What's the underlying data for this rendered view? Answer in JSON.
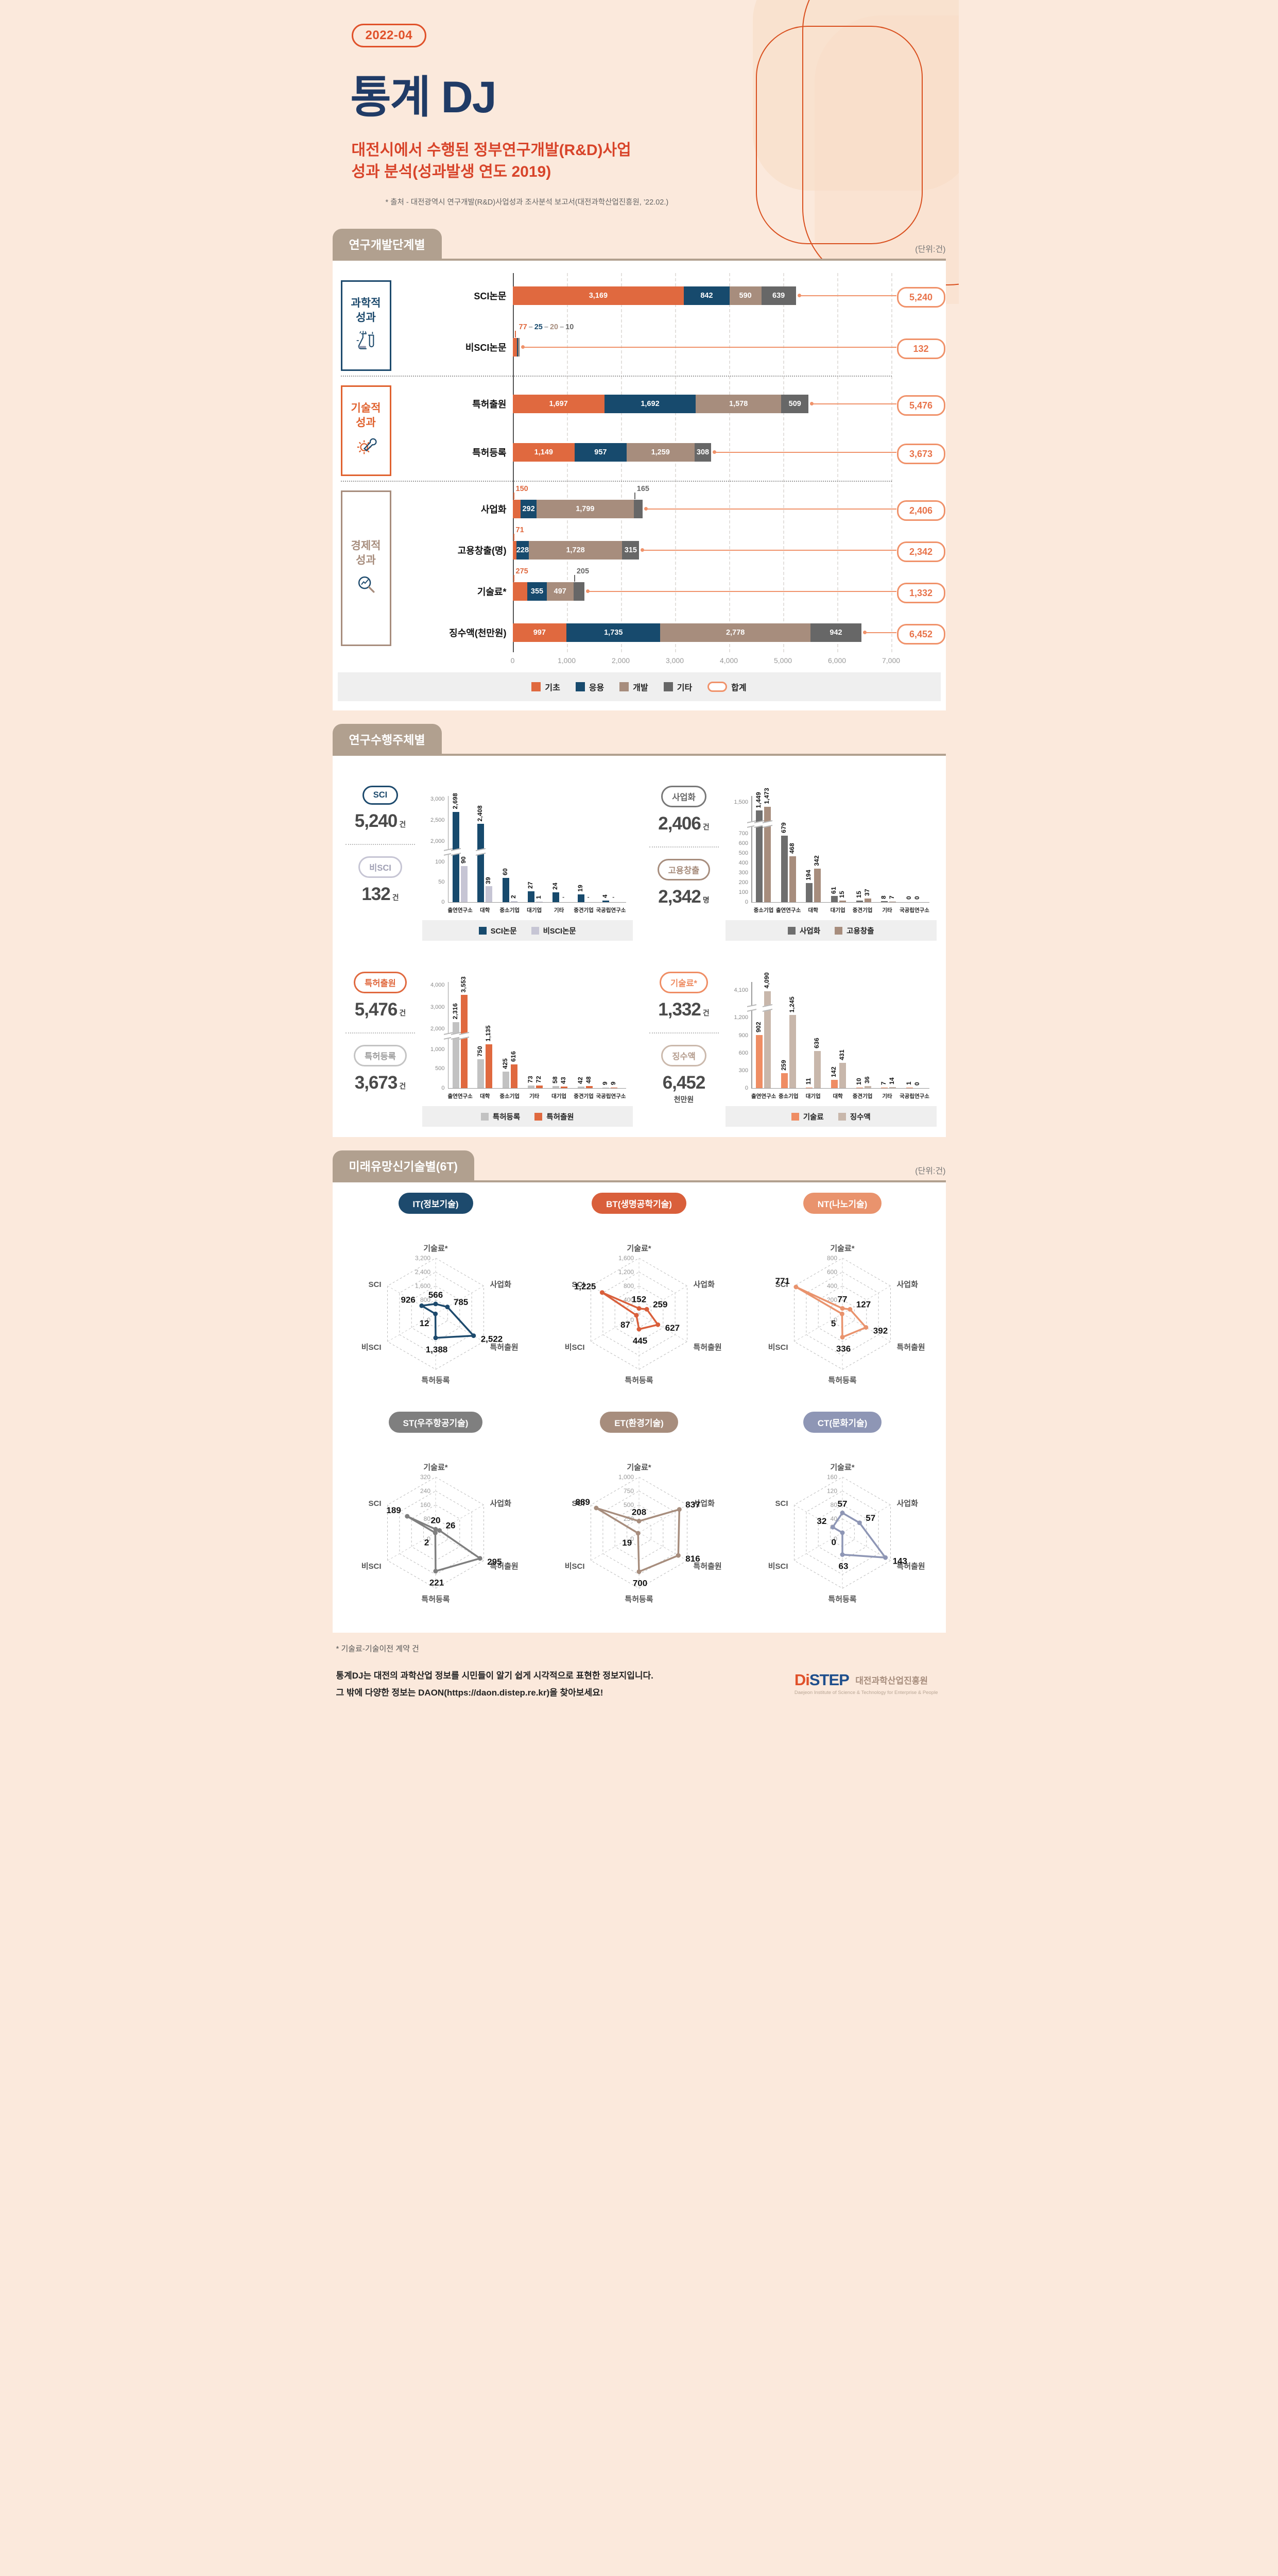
{
  "header": {
    "badge": "2022-04",
    "title": "통계 DJ",
    "subtitle_line1": "대전시에서 수행된 정부연구개발(R&D)사업",
    "subtitle_line2": "성과 분석(성과발생 연도 2019)",
    "source": "* 출처 - 대전광역시 연구개발(R&D)사업성과 조사분석 보고서(대전과학산업진흥원, ’22.02.)"
  },
  "section1": {
    "title": "연구개발단계별",
    "unit": "(단위:건)"
  },
  "section2": {
    "title": "연구수행주체별"
  },
  "section3": {
    "title": "미래유망신기술별(6T)",
    "unit": "(단위:건)"
  },
  "footer": {
    "note": "* 기술료-기술이전 계약 건",
    "line1": "통계DJ는 대전의 과학산업 정보를 시민들이 알기 쉽게 시각적으로 표현한 정보지입니다.",
    "line2": "그 밖에 다양한 정보는 DAON(https://daon.distep.re.kr)을 찾아보세요!",
    "logo_di": "Di",
    "logo_step": "STEP",
    "logo_kr": "대전과학산업진흥원",
    "logo_en": "Daejeon Institute of Science & Technology for Enterprise & People"
  },
  "chart_data": [
    {
      "id": "rnd-stage",
      "type": "bar",
      "subtype": "horizontal-stacked",
      "title": "연구개발단계별",
      "unit": "건",
      "xlim": [
        0,
        7000
      ],
      "x_ticks": [
        0,
        1000,
        2000,
        3000,
        4000,
        5000,
        6000,
        7000
      ],
      "series": [
        {
          "name": "기초",
          "color": "#e0693f"
        },
        {
          "name": "응용",
          "color": "#174a6d"
        },
        {
          "name": "개발",
          "color": "#a78d7d"
        },
        {
          "name": "기타",
          "color": "#676767"
        }
      ],
      "total_legend": {
        "label": "합계",
        "color": "#f0926a"
      },
      "groups": [
        {
          "name": "과학적 성과",
          "color": "#1d4a6d",
          "icon": "flask-icon",
          "rows": [
            {
              "label": "SCI논문",
              "values": [
                3169,
                842,
                590,
                639
              ],
              "total": 5240,
              "inside": [
                true,
                true,
                true,
                true
              ],
              "callouts": []
            },
            {
              "label": "비SCI논문",
              "values": [
                77,
                25,
                20,
                10
              ],
              "total": 132,
              "inside": [
                false,
                false,
                false,
                false
              ],
              "combo_callout": true,
              "callouts": []
            }
          ]
        },
        {
          "name": "기술적 성과",
          "color": "#e0622f",
          "icon": "gear-wrench-icon",
          "rows": [
            {
              "label": "특허출원",
              "values": [
                1697,
                1692,
                1578,
                509
              ],
              "total": 5476,
              "inside": [
                true,
                true,
                true,
                true
              ],
              "callouts": []
            },
            {
              "label": "특허등록",
              "values": [
                1149,
                957,
                1259,
                308
              ],
              "total": 3673,
              "inside": [
                true,
                true,
                true,
                true
              ],
              "callouts": []
            }
          ]
        },
        {
          "name": "경제적 성과",
          "color": "#a78d7d",
          "icon": "magnifier-chart-icon",
          "rows": [
            {
              "label": "사업화",
              "values": [
                150,
                292,
                1799,
                165
              ],
              "total": 2406,
              "inside": [
                false,
                true,
                true,
                false
              ],
              "callouts": [
                {
                  "seg": 0
                },
                {
                  "seg": 3
                }
              ]
            },
            {
              "label": "고용창출(명)",
              "values": [
                71,
                228,
                1728,
                315
              ],
              "total": 2342,
              "inside": [
                false,
                true,
                true,
                true
              ],
              "callouts": [
                {
                  "seg": 0
                }
              ]
            },
            {
              "label": "기술료*",
              "values": [
                275,
                355,
                497,
                205
              ],
              "total": 1332,
              "inside": [
                false,
                true,
                true,
                false
              ],
              "callouts": [
                {
                  "seg": 0
                },
                {
                  "seg": 3
                }
              ]
            },
            {
              "label": "징수액(천만원)",
              "values": [
                997,
                1735,
                2778,
                942
              ],
              "total": 6452,
              "inside": [
                true,
                true,
                true,
                true
              ],
              "callouts": []
            }
          ]
        }
      ]
    },
    {
      "id": "papers-by-performer",
      "type": "bar",
      "subtype": "grouped-vertical-broken-axis",
      "summaries": [
        {
          "label": "SCI",
          "value": 5240,
          "unit": "건",
          "border": "#1d4a6d",
          "text": "#1d4a6d"
        },
        {
          "label": "비SCI",
          "value": 132,
          "unit": "건",
          "border": "#c6c5d4",
          "text": "#a0a0b4"
        }
      ],
      "categories": [
        "출연연구소",
        "대학",
        "중소기업",
        "대기업",
        "기타",
        "중견기업",
        "국공립연구소"
      ],
      "series": [
        {
          "name": "SCI논문",
          "color": "#174a6d",
          "values": [
            2698,
            2408,
            60,
            27,
            24,
            19,
            4
          ]
        },
        {
          "name": "비SCI논문",
          "color": "#c6c5d4",
          "values": [
            90,
            39,
            2,
            1,
            null,
            null,
            null
          ]
        }
      ],
      "scale": {
        "low_ticks": [
          0,
          50,
          100
        ],
        "low_max": 115,
        "high_ticks": [
          2000,
          2500,
          3000
        ],
        "high_min": 1800,
        "high_max": 3000,
        "low_frac": 0.45
      }
    },
    {
      "id": "commercialization-employment-by-performer",
      "type": "bar",
      "subtype": "grouped-vertical-broken-axis",
      "summaries": [
        {
          "label": "사업화",
          "value": 2406,
          "unit": "건",
          "border": "#787878",
          "text": "#666666"
        },
        {
          "label": "고용창출",
          "value": 2342,
          "unit": "명",
          "border": "#a78d7d",
          "text": "#a78d7d"
        }
      ],
      "categories": [
        "중소기업",
        "출연연구소",
        "대학",
        "대기업",
        "중견기업",
        "기타",
        "국공립연구소"
      ],
      "series": [
        {
          "name": "사업화",
          "color": "#6e6e6e",
          "values": [
            1449,
            679,
            194,
            61,
            15,
            8,
            0
          ]
        },
        {
          "name": "고용창출",
          "color": "#a78d7d",
          "values": [
            1473,
            468,
            342,
            15,
            37,
            7,
            0
          ]
        }
      ],
      "scale": {
        "low_ticks": [
          0,
          100,
          200,
          300,
          400,
          500,
          600,
          700
        ],
        "low_max": 760,
        "high_ticks": [
          1500
        ],
        "high_min": 1380,
        "high_max": 1520,
        "low_frac": 0.72
      }
    },
    {
      "id": "patents-by-performer",
      "type": "bar",
      "subtype": "grouped-vertical-broken-axis",
      "summaries": [
        {
          "label": "특허출원",
          "value": 5476,
          "unit": "건",
          "border": "#e0693f",
          "text": "#e0693f"
        },
        {
          "label": "특허등록",
          "value": 3673,
          "unit": "건",
          "border": "#c4c4c4",
          "text": "#9b9b9b"
        }
      ],
      "categories": [
        "출연연구소",
        "대학",
        "중소기업",
        "기타",
        "대기업",
        "중견기업",
        "국공립연구소"
      ],
      "series": [
        {
          "name": "특허등록",
          "color": "#c2c2c2",
          "values": [
            2316,
            750,
            425,
            73,
            58,
            42,
            9
          ]
        },
        {
          "name": "특허출원",
          "color": "#e0693f",
          "values": [
            3553,
            1135,
            616,
            72,
            43,
            48,
            9
          ]
        }
      ],
      "scale": {
        "low_ticks": [
          0,
          500,
          1000
        ],
        "low_max": 1250,
        "high_ticks": [
          2000,
          3000,
          4000
        ],
        "high_min": 1800,
        "high_max": 4000,
        "low_frac": 0.47
      }
    },
    {
      "id": "royalty-collection-by-performer",
      "type": "bar",
      "subtype": "grouped-vertical-broken-axis",
      "summaries": [
        {
          "label": "기술료*",
          "value": 1332,
          "unit": "건",
          "border": "#ef8d64",
          "text": "#ef8d64"
        },
        {
          "label": "징수액",
          "value": 6452,
          "unit": "천만원",
          "border": "#cbb9ac",
          "text": "#b49c8d",
          "unit_block": true
        }
      ],
      "categories": [
        "출연연구소",
        "중소기업",
        "대기업",
        "대학",
        "중견기업",
        "기타",
        "국공립연구소"
      ],
      "series": [
        {
          "name": "기술료",
          "color": "#ef8d64",
          "values": [
            902,
            259,
            11,
            142,
            10,
            7,
            1
          ]
        },
        {
          "name": "징수액",
          "color": "#c8b7ab",
          "values": [
            4090,
            1245,
            636,
            431,
            36,
            14,
            0
          ]
        }
      ],
      "scale": {
        "low_ticks": [
          0,
          300,
          600,
          900,
          1200
        ],
        "low_max": 1300,
        "high_ticks": [
          4100
        ],
        "high_min": 3950,
        "high_max": 4150,
        "low_frac": 0.74
      }
    },
    {
      "id": "radar-it",
      "type": "radar",
      "title": "IT(정보기술)",
      "color": "#1d4a6d",
      "max": 3200,
      "rings": [
        0,
        800,
        1600,
        2400,
        3200
      ],
      "axes": [
        "기술료*",
        "사업화",
        "특허출원",
        "특허등록",
        "비SCI",
        "SCI"
      ],
      "values": [
        566,
        785,
        2522,
        1388,
        12,
        926
      ]
    },
    {
      "id": "radar-bt",
      "type": "radar",
      "title": "BT(생명공학기술)",
      "color": "#d95f3b",
      "max": 1600,
      "rings": [
        0,
        400,
        800,
        1200,
        1600
      ],
      "axes": [
        "기술료*",
        "사업화",
        "특허출원",
        "특허등록",
        "비SCI",
        "SCI"
      ],
      "values": [
        152,
        259,
        627,
        445,
        87,
        1225
      ]
    },
    {
      "id": "radar-nt",
      "type": "radar",
      "title": "NT(나노기술)",
      "color": "#e9936d",
      "max": 800,
      "rings": [
        0,
        200,
        400,
        600,
        800
      ],
      "axes": [
        "기술료*",
        "사업화",
        "특허출원",
        "특허등록",
        "비SCI",
        "SCI"
      ],
      "values": [
        77,
        127,
        392,
        336,
        5,
        771
      ]
    },
    {
      "id": "radar-st",
      "type": "radar",
      "title": "ST(우주항공기술)",
      "color": "#7f7f7f",
      "max": 320,
      "rings": [
        0,
        80,
        160,
        240,
        320
      ],
      "axes": [
        "기술료*",
        "사업화",
        "특허출원",
        "특허등록",
        "비SCI",
        "SCI"
      ],
      "values": [
        20,
        26,
        295,
        221,
        2,
        189
      ]
    },
    {
      "id": "radar-et",
      "type": "radar",
      "title": "ET(환경기술)",
      "color": "#a78d7d",
      "max": 1000,
      "rings": [
        0,
        250,
        500,
        750,
        1000
      ],
      "axes": [
        "기술료*",
        "사업화",
        "특허출원",
        "특허등록",
        "비SCI",
        "SCI"
      ],
      "values": [
        208,
        837,
        816,
        700,
        19,
        889
      ]
    },
    {
      "id": "radar-ct",
      "type": "radar",
      "title": "CT(문화기술)",
      "color": "#8e96b5",
      "max": 160,
      "rings": [
        0,
        40,
        80,
        120,
        160
      ],
      "axes": [
        "기술료*",
        "사업화",
        "특허출원",
        "특허등록",
        "비SCI",
        "SCI"
      ],
      "values": [
        57,
        57,
        143,
        63,
        0,
        32
      ]
    }
  ]
}
